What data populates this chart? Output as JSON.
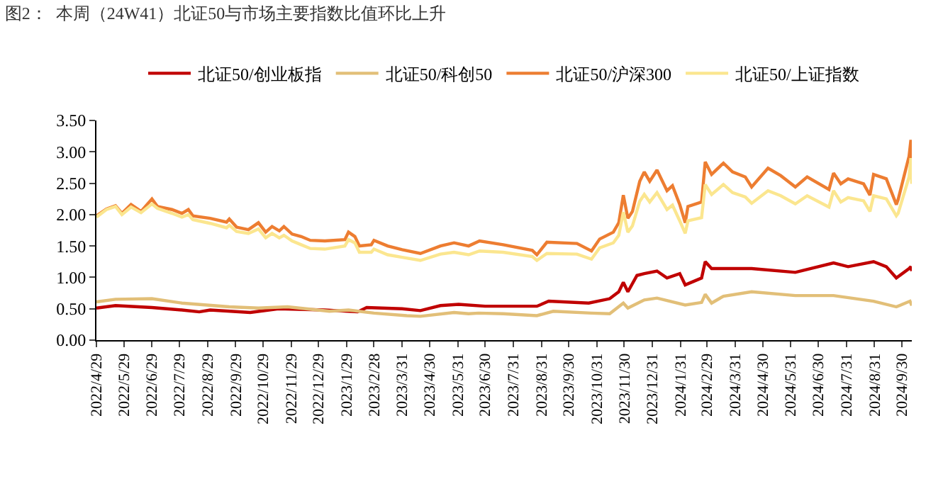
{
  "chart_data": {
    "type": "line",
    "title": "图2：  本周（24W41）北证50与市场主要指数比值环比上升",
    "legend": "top",
    "marker": "none",
    "line_style": "solid",
    "xlim": [
      "2022-04-29",
      "2024-10-11"
    ],
    "ylim": [
      0,
      3.5
    ],
    "yticks": [
      {
        "value": 0,
        "label": "0.00"
      },
      {
        "value": 0.5,
        "label": "0.50"
      },
      {
        "value": 1,
        "label": "1.00"
      },
      {
        "value": 1.5,
        "label": "1.50"
      },
      {
        "value": 2,
        "label": "2.00"
      },
      {
        "value": 2.5,
        "label": "2.50"
      },
      {
        "value": 3,
        "label": "3.00"
      },
      {
        "value": 3.5,
        "label": "3.50"
      }
    ],
    "xticks": [
      {
        "value": "2022-04-29",
        "label": "2022/4/29"
      },
      {
        "value": "2022-05-29",
        "label": "2022/5/29"
      },
      {
        "value": "2022-06-29",
        "label": "2022/6/29"
      },
      {
        "value": "2022-07-29",
        "label": "2022/7/29"
      },
      {
        "value": "2022-08-29",
        "label": "2022/8/29"
      },
      {
        "value": "2022-09-29",
        "label": "2022/9/29"
      },
      {
        "value": "2022-10-29",
        "label": "2022/10/29"
      },
      {
        "value": "2022-11-29",
        "label": "2022/11/29"
      },
      {
        "value": "2022-12-29",
        "label": "2022/12/29"
      },
      {
        "value": "2023-01-29",
        "label": "2023/1/29"
      },
      {
        "value": "2023-02-28",
        "label": "2023/2/28"
      },
      {
        "value": "2023-03-31",
        "label": "2023/3/31"
      },
      {
        "value": "2023-04-30",
        "label": "2023/4/30"
      },
      {
        "value": "2023-05-31",
        "label": "2023/5/31"
      },
      {
        "value": "2023-06-30",
        "label": "2023/6/30"
      },
      {
        "value": "2023-07-31",
        "label": "2023/7/31"
      },
      {
        "value": "2023-08-31",
        "label": "2023/8/31"
      },
      {
        "value": "2023-09-30",
        "label": "2023/9/30"
      },
      {
        "value": "2023-10-31",
        "label": "2023/10/31"
      },
      {
        "value": "2023-11-30",
        "label": "2023/11/30"
      },
      {
        "value": "2023-12-31",
        "label": "2023/12/31"
      },
      {
        "value": "2024-01-31",
        "label": "2024/1/31"
      },
      {
        "value": "2024-02-29",
        "label": "2024/2/29"
      },
      {
        "value": "2024-03-31",
        "label": "2024/3/31"
      },
      {
        "value": "2024-04-30",
        "label": "2024/4/30"
      },
      {
        "value": "2024-05-31",
        "label": "2024/5/31"
      },
      {
        "value": "2024-06-30",
        "label": "2024/6/30"
      },
      {
        "value": "2024-07-31",
        "label": "2024/7/31"
      },
      {
        "value": "2024-08-31",
        "label": "2024/8/31"
      },
      {
        "value": "2024-09-30",
        "label": "2024/9/30"
      }
    ],
    "series": [
      {
        "name": "北证50/创业板指",
        "color": "#c00000",
        "x": [
          "2022-04-29",
          "2022-05-20",
          "2022-06-29",
          "2022-08-01",
          "2022-08-20",
          "2022-09-01",
          "2022-10-15",
          "2022-11-15",
          "2023-01-05",
          "2023-02-10",
          "2023-02-20",
          "2023-03-31",
          "2023-04-20",
          "2023-05-12",
          "2023-06-01",
          "2023-06-30",
          "2023-08-26",
          "2023-09-08",
          "2023-10-22",
          "2023-11-14",
          "2023-11-24",
          "2023-11-29",
          "2023-12-04",
          "2023-12-14",
          "2023-12-22",
          "2024-01-05",
          "2024-01-16",
          "2024-01-30",
          "2024-02-05",
          "2024-02-23",
          "2024-02-27",
          "2024-03-05",
          "2024-04-18",
          "2024-06-05",
          "2024-07-17",
          "2024-08-02",
          "2024-08-30",
          "2024-09-13",
          "2024-09-24",
          "2024-10-08",
          "2024-10-10",
          "2024-10-11"
        ],
        "values": [
          0.51,
          0.55,
          0.52,
          0.48,
          0.45,
          0.48,
          0.44,
          0.5,
          0.48,
          0.45,
          0.52,
          0.5,
          0.47,
          0.55,
          0.57,
          0.54,
          0.54,
          0.62,
          0.59,
          0.66,
          0.77,
          0.92,
          0.77,
          1.03,
          1.06,
          1.1,
          0.99,
          1.06,
          0.88,
          0.99,
          1.25,
          1.14,
          1.14,
          1.08,
          1.23,
          1.17,
          1.25,
          1.17,
          0.99,
          1.14,
          1.17,
          1.1
        ]
      },
      {
        "name": "北证50/科创50",
        "color": "#e2bf78",
        "x": [
          "2022-04-29",
          "2022-05-20",
          "2022-06-29",
          "2022-08-01",
          "2022-09-22",
          "2022-10-24",
          "2022-11-25",
          "2023-01-10",
          "2023-01-31",
          "2023-02-28",
          "2023-04-05",
          "2023-04-20",
          "2023-05-27",
          "2023-06-12",
          "2023-06-23",
          "2023-07-20",
          "2023-08-26",
          "2023-09-13",
          "2023-10-25",
          "2023-11-14",
          "2023-11-29",
          "2023-12-04",
          "2023-12-22",
          "2024-01-05",
          "2024-02-05",
          "2024-02-23",
          "2024-02-27",
          "2024-03-05",
          "2024-03-18",
          "2024-04-18",
          "2024-06-05",
          "2024-07-17",
          "2024-08-30",
          "2024-09-24",
          "2024-10-09",
          "2024-10-11"
        ],
        "values": [
          0.61,
          0.65,
          0.66,
          0.59,
          0.53,
          0.51,
          0.53,
          0.46,
          0.48,
          0.43,
          0.39,
          0.38,
          0.44,
          0.42,
          0.43,
          0.42,
          0.39,
          0.46,
          0.43,
          0.42,
          0.59,
          0.51,
          0.64,
          0.67,
          0.56,
          0.6,
          0.73,
          0.59,
          0.7,
          0.77,
          0.71,
          0.71,
          0.62,
          0.53,
          0.62,
          0.55
        ]
      },
      {
        "name": "北证50/沪深300",
        "color": "#ed7d31",
        "x": [
          "2022-04-29",
          "2022-05-10",
          "2022-05-20",
          "2022-05-27",
          "2022-06-06",
          "2022-06-17",
          "2022-06-29",
          "2022-07-05",
          "2022-07-21",
          "2022-08-01",
          "2022-08-08",
          "2022-08-13",
          "2022-09-01",
          "2022-09-19",
          "2022-09-22",
          "2022-09-30",
          "2022-10-13",
          "2022-10-24",
          "2022-11-01",
          "2022-11-08",
          "2022-11-16",
          "2022-11-21",
          "2022-11-30",
          "2022-12-10",
          "2022-12-20",
          "2023-01-05",
          "2023-01-27",
          "2023-01-31",
          "2023-02-07",
          "2023-02-12",
          "2023-02-25",
          "2023-02-28",
          "2023-03-15",
          "2023-03-31",
          "2023-04-20",
          "2023-05-12",
          "2023-05-27",
          "2023-06-12",
          "2023-06-24",
          "2023-07-20",
          "2023-08-21",
          "2023-08-26",
          "2023-09-06",
          "2023-10-09",
          "2023-10-25",
          "2023-11-03",
          "2023-11-18",
          "2023-11-24",
          "2023-11-29",
          "2023-12-04",
          "2023-12-09",
          "2023-12-17",
          "2023-12-22",
          "2023-12-28",
          "2024-01-05",
          "2024-01-16",
          "2024-01-22",
          "2024-01-30",
          "2024-02-05",
          "2024-02-08",
          "2024-02-23",
          "2024-02-27",
          "2024-03-05",
          "2024-03-18",
          "2024-03-28",
          "2024-04-11",
          "2024-04-18",
          "2024-05-06",
          "2024-05-20",
          "2024-06-05",
          "2024-06-18",
          "2024-07-12",
          "2024-07-17",
          "2024-07-25",
          "2024-08-02",
          "2024-08-19",
          "2024-08-26",
          "2024-08-30",
          "2024-09-13",
          "2024-09-24",
          "2024-09-26",
          "2024-10-08",
          "2024-10-10",
          "2024-10-11"
        ],
        "values": [
          1.98,
          2.09,
          2.14,
          2.02,
          2.16,
          2.05,
          2.25,
          2.13,
          2.08,
          2.02,
          2.08,
          1.98,
          1.94,
          1.88,
          1.93,
          1.8,
          1.76,
          1.87,
          1.72,
          1.81,
          1.74,
          1.81,
          1.69,
          1.65,
          1.59,
          1.58,
          1.6,
          1.72,
          1.65,
          1.5,
          1.52,
          1.59,
          1.5,
          1.44,
          1.38,
          1.5,
          1.55,
          1.5,
          1.58,
          1.52,
          1.43,
          1.36,
          1.56,
          1.54,
          1.42,
          1.61,
          1.72,
          1.87,
          2.31,
          1.94,
          2.05,
          2.53,
          2.68,
          2.53,
          2.71,
          2.38,
          2.46,
          2.16,
          1.87,
          2.13,
          2.2,
          2.84,
          2.64,
          2.82,
          2.68,
          2.6,
          2.44,
          2.74,
          2.62,
          2.44,
          2.6,
          2.4,
          2.66,
          2.49,
          2.57,
          2.49,
          2.31,
          2.64,
          2.57,
          2.16,
          2.24,
          2.93,
          3.19,
          2.71
        ]
      },
      {
        "name": "北证50/上证指数",
        "color": "#fbe68f",
        "x": [
          "2022-04-29",
          "2022-05-10",
          "2022-05-20",
          "2022-05-27",
          "2022-06-06",
          "2022-06-17",
          "2022-06-29",
          "2022-07-05",
          "2022-07-21",
          "2022-08-01",
          "2022-08-08",
          "2022-08-13",
          "2022-09-01",
          "2022-09-19",
          "2022-09-22",
          "2022-09-30",
          "2022-10-13",
          "2022-10-24",
          "2022-11-01",
          "2022-11-08",
          "2022-11-16",
          "2022-11-21",
          "2022-11-30",
          "2022-12-10",
          "2022-12-20",
          "2023-01-05",
          "2023-01-27",
          "2023-01-31",
          "2023-02-07",
          "2023-02-12",
          "2023-02-25",
          "2023-02-28",
          "2023-03-15",
          "2023-03-31",
          "2023-04-20",
          "2023-05-12",
          "2023-05-27",
          "2023-06-12",
          "2023-06-24",
          "2023-07-20",
          "2023-08-21",
          "2023-08-26",
          "2023-09-06",
          "2023-10-09",
          "2023-10-25",
          "2023-11-03",
          "2023-11-18",
          "2023-11-24",
          "2023-11-29",
          "2023-12-04",
          "2023-12-09",
          "2023-12-17",
          "2023-12-22",
          "2023-12-28",
          "2024-01-05",
          "2024-01-16",
          "2024-01-22",
          "2024-01-30",
          "2024-02-05",
          "2024-02-08",
          "2024-02-23",
          "2024-02-27",
          "2024-03-05",
          "2024-03-18",
          "2024-03-28",
          "2024-04-11",
          "2024-04-18",
          "2024-05-06",
          "2024-05-20",
          "2024-06-05",
          "2024-06-18",
          "2024-07-12",
          "2024-07-17",
          "2024-07-25",
          "2024-08-02",
          "2024-08-19",
          "2024-08-26",
          "2024-08-30",
          "2024-09-13",
          "2024-09-24",
          "2024-09-26",
          "2024-10-08",
          "2024-10-10",
          "2024-10-11"
        ],
        "values": [
          1.96,
          2.08,
          2.13,
          2.0,
          2.12,
          2.03,
          2.17,
          2.1,
          2.02,
          1.96,
          2.0,
          1.92,
          1.86,
          1.79,
          1.83,
          1.73,
          1.7,
          1.77,
          1.63,
          1.7,
          1.63,
          1.67,
          1.58,
          1.52,
          1.46,
          1.45,
          1.5,
          1.6,
          1.55,
          1.4,
          1.4,
          1.45,
          1.36,
          1.32,
          1.27,
          1.37,
          1.4,
          1.36,
          1.42,
          1.4,
          1.33,
          1.27,
          1.38,
          1.37,
          1.29,
          1.47,
          1.55,
          1.67,
          2.04,
          1.72,
          1.82,
          2.21,
          2.32,
          2.2,
          2.35,
          2.08,
          2.15,
          1.9,
          1.7,
          1.9,
          1.95,
          2.48,
          2.32,
          2.48,
          2.35,
          2.28,
          2.18,
          2.38,
          2.3,
          2.17,
          2.3,
          2.12,
          2.38,
          2.2,
          2.27,
          2.22,
          2.05,
          2.3,
          2.25,
          1.98,
          2.02,
          2.6,
          2.9,
          2.49
        ]
      }
    ]
  }
}
